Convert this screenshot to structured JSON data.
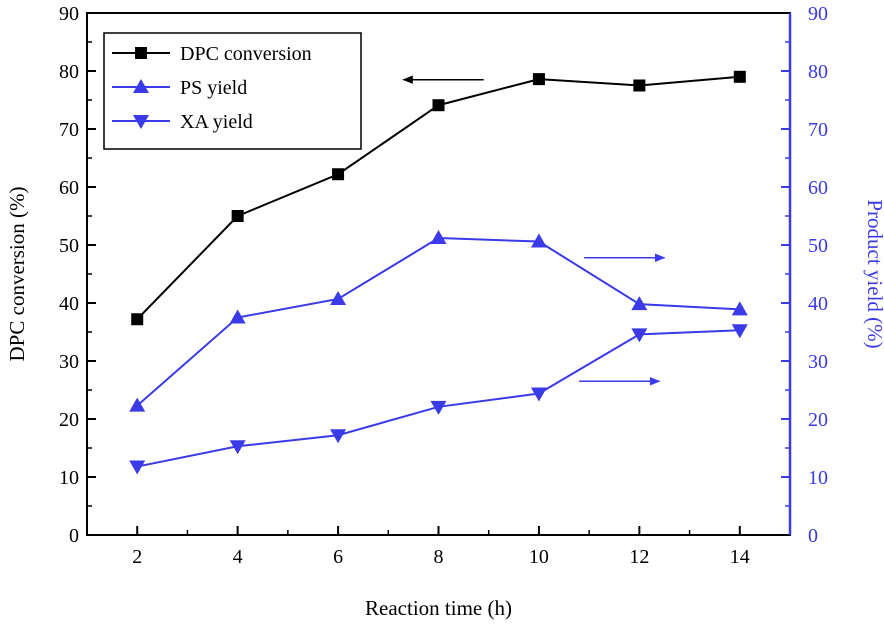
{
  "chart_data": {
    "type": "line",
    "x": [
      2,
      4,
      6,
      8,
      10,
      12,
      14
    ],
    "xlabel": "Reaction time (h)",
    "ylabel_left": "DPC conversion (%)",
    "ylabel_right": "Product yield (%)",
    "xlim": [
      1,
      15
    ],
    "ylim_left": [
      0,
      90
    ],
    "ylim_right": [
      0,
      90
    ],
    "x_ticks": [
      2,
      4,
      6,
      8,
      10,
      12,
      14
    ],
    "y_ticks": [
      0,
      10,
      20,
      30,
      40,
      50,
      60,
      70,
      80,
      90
    ],
    "grid": false,
    "legend_position": "top-left",
    "series": [
      {
        "name": "DPC conversion",
        "axis": "left",
        "marker": "square",
        "color": "#000000",
        "values": [
          37.2,
          55.0,
          62.2,
          74.1,
          78.6,
          77.5,
          79.0
        ]
      },
      {
        "name": "PS yield",
        "axis": "right",
        "marker": "triangle-up",
        "color": "#3a3ae8",
        "values": [
          22.3,
          37.5,
          40.7,
          51.2,
          50.6,
          39.8,
          38.9
        ]
      },
      {
        "name": "XA yield",
        "axis": "right",
        "marker": "triangle-down",
        "color": "#3a3ae8",
        "values": [
          11.8,
          15.3,
          17.2,
          22.1,
          24.4,
          34.6,
          35.3
        ]
      }
    ],
    "annotations": [
      {
        "type": "arrow",
        "direction": "left",
        "refers_to": "left-axis",
        "series": "DPC conversion"
      },
      {
        "type": "arrow",
        "direction": "right",
        "refers_to": "right-axis",
        "series": "PS yield"
      },
      {
        "type": "arrow",
        "direction": "right",
        "refers_to": "right-axis",
        "series": "XA yield"
      }
    ]
  }
}
